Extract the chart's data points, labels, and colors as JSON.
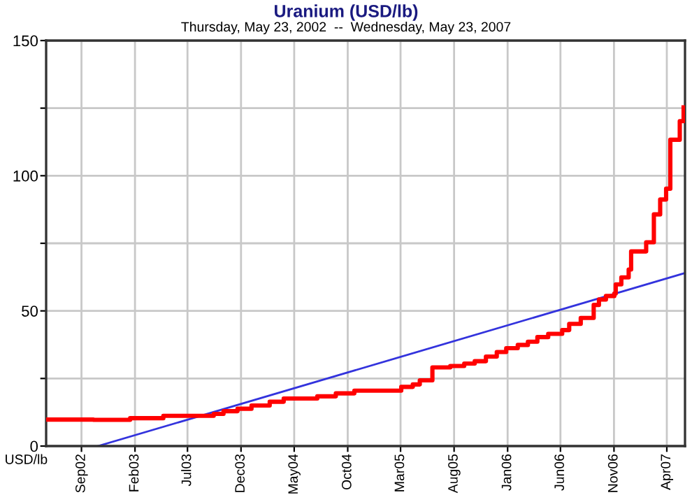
{
  "chart_data": {
    "type": "step",
    "title": "Uranium (USD/lb)",
    "subtitle": "Thursday, May 23, 2002  --  Wednesday, May 23, 2007",
    "ylabel": "USD/lb",
    "series": [
      {
        "color": "#ff0000",
        "x": [
          "2002-05-23",
          "2002-10-05",
          "2003-01-18",
          "2003-04-23",
          "2003-09-14",
          "2003-10-12",
          "2003-11-21",
          "2003-12-31",
          "2004-02-21",
          "2004-04-01",
          "2004-07-06",
          "2004-08-28",
          "2004-10-20",
          "2005-03-03",
          "2005-04-05",
          "2005-04-25",
          "2005-05-31",
          "2005-07-21",
          "2005-08-30",
          "2005-09-29",
          "2005-10-31",
          "2005-12-01",
          "2005-12-28",
          "2006-01-30",
          "2006-02-28",
          "2006-03-27",
          "2006-04-27",
          "2006-06-06",
          "2006-06-26",
          "2006-07-29",
          "2006-09-04",
          "2006-09-19",
          "2006-10-09",
          "2006-11-02",
          "2006-11-06",
          "2006-11-22",
          "2006-12-13",
          "2006-12-20",
          "2007-02-01",
          "2007-02-23",
          "2007-03-13",
          "2007-03-30",
          "2007-04-11",
          "2007-05-08",
          "2007-05-19"
        ],
        "values": [
          9.8,
          9.7,
          10.3,
          11.2,
          11.9,
          12.9,
          13.8,
          15,
          16.4,
          17.6,
          18.4,
          19.5,
          20.5,
          21.9,
          22.8,
          24.3,
          29.1,
          29.6,
          30.5,
          31.4,
          33.1,
          34.8,
          36.2,
          37.4,
          38.6,
          40.3,
          41.5,
          42.9,
          45.2,
          47.4,
          52.2,
          54.2,
          55.5,
          56.4,
          59.8,
          62.4,
          65.3,
          72,
          75.4,
          85.7,
          91.2,
          95.2,
          113.3,
          120.2,
          125.3
        ]
      },
      {
        "type": "line",
        "color": "#3333dd",
        "x": [
          "2002-10-18",
          "2007-05-23"
        ],
        "values": [
          0,
          64
        ]
      }
    ],
    "xlim": [
      "2002-05-23",
      "2007-05-23"
    ],
    "xticks": [
      {
        "value": "2002-09-01",
        "label": "Sep02"
      },
      {
        "value": "2003-02-01",
        "label": "Feb03"
      },
      {
        "value": "2003-07-01",
        "label": "Jul03"
      },
      {
        "value": "2003-12-01",
        "label": "Dec03"
      },
      {
        "value": "2004-05-01",
        "label": "May04"
      },
      {
        "value": "2004-10-01",
        "label": "Oct04"
      },
      {
        "value": "2005-03-01",
        "label": "Mar05"
      },
      {
        "value": "2005-08-01",
        "label": "Aug05"
      },
      {
        "value": "2006-01-01",
        "label": "Jan06"
      },
      {
        "value": "2006-06-01",
        "label": "Jun06"
      },
      {
        "value": "2006-11-01",
        "label": "Nov06"
      },
      {
        "value": "2007-04-01",
        "label": "Apr07"
      }
    ],
    "ylim": [
      0,
      150
    ],
    "yticks": [
      0,
      {
        "value": 25,
        "label": null
      },
      50,
      {
        "value": 75,
        "label": null
      },
      100,
      {
        "value": 125,
        "label": null
      },
      150
    ],
    "grid": true
  }
}
